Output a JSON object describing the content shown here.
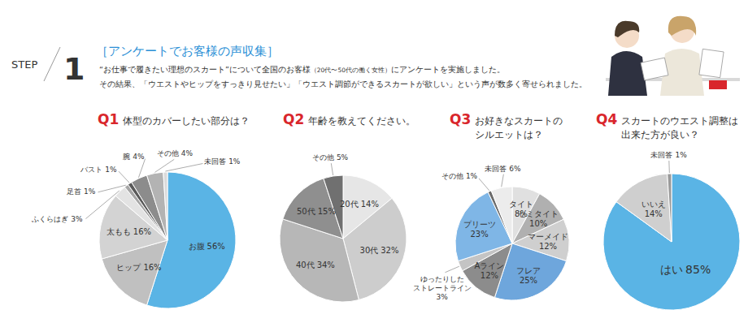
{
  "header": {
    "step": "STEP",
    "number": "1",
    "title": "［アンケートでお客様の声収集］",
    "description": [
      [
        "“お仕事で履きたい理想のスカート”について全国のお客様",
        "（20代〜50代の働く女性）",
        "にアンケートを実施しました。"
      ],
      [
        "その結果、",
        "「ウエストやヒップをすっきり見せたい」",
        "「ウエスト調節ができるスカートが欲しい」",
        "という声が数多く寄せられました。"
      ]
    ]
  },
  "chart_data": [
    {
      "type": "pie",
      "number": "Q1",
      "title": [
        "体型のカバーしたい部分は？"
      ],
      "categories": [
        "お腹",
        "ヒップ",
        "太もも",
        "ふくらはぎ",
        "足首",
        "バスト",
        "腕",
        "その他",
        "未回答"
      ],
      "values": [
        56,
        16,
        16,
        3,
        1,
        1,
        4,
        4,
        1
      ],
      "value_labels": [
        "56%",
        "16%",
        "16%",
        "3%",
        "1%",
        "1%",
        "4%",
        "4%",
        "1%"
      ],
      "colors": [
        "#5ab4e5",
        "#c0c0c0",
        "#d3d3d3",
        "#e3e3e3",
        "#a6a6a6",
        "#5a5a5a",
        "#8c8c8c",
        "#b3b3b3",
        "#dadada"
      ],
      "data_labels": true
    },
    {
      "type": "pie",
      "number": "Q2",
      "title": [
        "年齢を教えてください。"
      ],
      "categories": [
        "20代",
        "30代",
        "40代",
        "50代",
        "その他"
      ],
      "values": [
        14,
        32,
        34,
        15,
        5
      ],
      "value_labels": [
        "14%",
        "32%",
        "34%",
        "15%",
        "5%"
      ],
      "colors": [
        "#e6e6e6",
        "#cdcdcd",
        "#b7b7b7",
        "#8f8f8f",
        "#707070"
      ],
      "data_labels": true
    },
    {
      "type": "pie",
      "number": "Q3",
      "title": [
        "お好きなスカートの",
        "シルエットは？"
      ],
      "categories": [
        "タイト",
        "セミタイト",
        "マーメイド",
        "フレア",
        "Aライン",
        "ゆったりした\nストレートライン",
        "プリーツ",
        "その他",
        "未回答"
      ],
      "values": [
        8,
        10,
        12,
        25,
        12,
        3,
        23,
        1,
        6
      ],
      "value_labels": [
        "8%",
        "10%",
        "12%",
        "25%",
        "12%",
        "3%",
        "23%",
        "1%",
        "6%"
      ],
      "colors": [
        "#e0e0e0",
        "#b0b0b0",
        "#cfcfcf",
        "#6ea6dc",
        "#8c8c8c",
        "#c4c4c4",
        "#7fb6e6",
        "#6b6b6b",
        "#ececec"
      ],
      "data_labels": true
    },
    {
      "type": "pie",
      "number": "Q4",
      "title": [
        "スカートのウエスト調整は",
        "出来た方が良い？"
      ],
      "categories": [
        "はい",
        "いいえ",
        "未回答"
      ],
      "values": [
        85,
        14,
        1
      ],
      "value_labels": [
        "85%",
        "14%",
        "1%"
      ],
      "colors": [
        "#5ab4e5",
        "#cfcfcf",
        "#9a9a9a"
      ],
      "data_labels": true
    }
  ]
}
